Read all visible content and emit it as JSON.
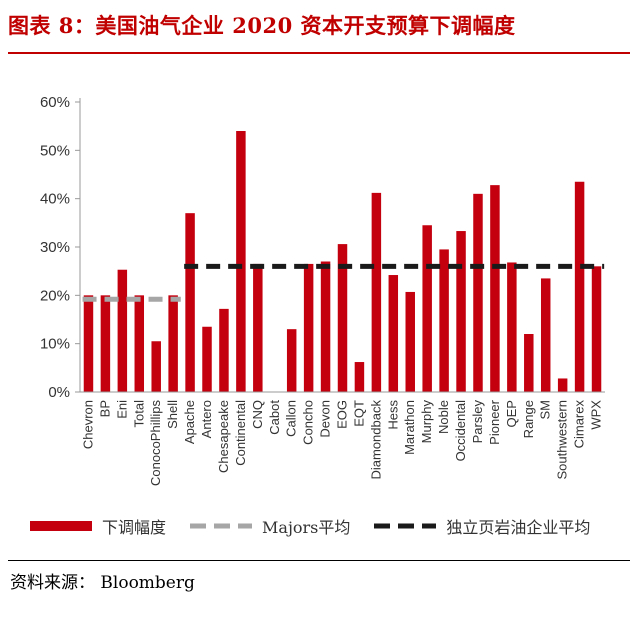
{
  "header": {
    "title": "图表 8：美国油气企业 2020 资本开支预算下调幅度"
  },
  "footer": {
    "source": "资料来源： Bloomberg"
  },
  "colors": {
    "bar": "#c4000f",
    "majors_line": "#a6a6a6",
    "independent_line": "#1a1a1a",
    "title": "#c00000"
  },
  "chart_data": {
    "type": "bar",
    "categories": [
      "Chevron",
      "BP",
      "Eni",
      "Total",
      "ConocoPhillips",
      "Shell",
      "Apache",
      "Antero",
      "Chesapeake",
      "Continental",
      "CNQ",
      "Cabot",
      "Callon",
      "Concho",
      "Devon",
      "EOG",
      "EQT",
      "Diamondback",
      "Hess",
      "Marathon",
      "Murphy",
      "Noble",
      "Occidental",
      "Parsley",
      "Pioneer",
      "QEP",
      "Range",
      "SM",
      "Southwestern",
      "Cimarex",
      "WPX"
    ],
    "values": [
      20,
      20,
      25.3,
      20,
      10.5,
      20,
      37,
      13.5,
      17.2,
      54,
      26.5,
      0,
      13,
      26.5,
      27,
      30.6,
      6.2,
      41.2,
      24.2,
      20.7,
      34.5,
      29.5,
      33.3,
      41,
      42.8,
      26.8,
      12,
      23.5,
      2.8,
      43.5,
      26
    ],
    "ylim": [
      0,
      60
    ],
    "yticks": [
      "0%",
      "10%",
      "20%",
      "30%",
      "40%",
      "50%",
      "60%"
    ],
    "ytick_values": [
      0,
      10,
      20,
      30,
      40,
      50,
      60
    ],
    "reference_lines": [
      {
        "legend_index": 1,
        "value": 19.2,
        "from_category": 0,
        "to_category": 5
      },
      {
        "legend_index": 2,
        "value": 26,
        "from_category": 6,
        "to_category": 30
      }
    ],
    "legend": {
      "placement": "bottom",
      "items": [
        {
          "label": "下调幅度",
          "style": "bar"
        },
        {
          "label": "Majors平均",
          "style": "dashed-gray"
        },
        {
          "label": "独立页岩油企业平均",
          "style": "dashed-black"
        }
      ]
    },
    "grid": false
  }
}
